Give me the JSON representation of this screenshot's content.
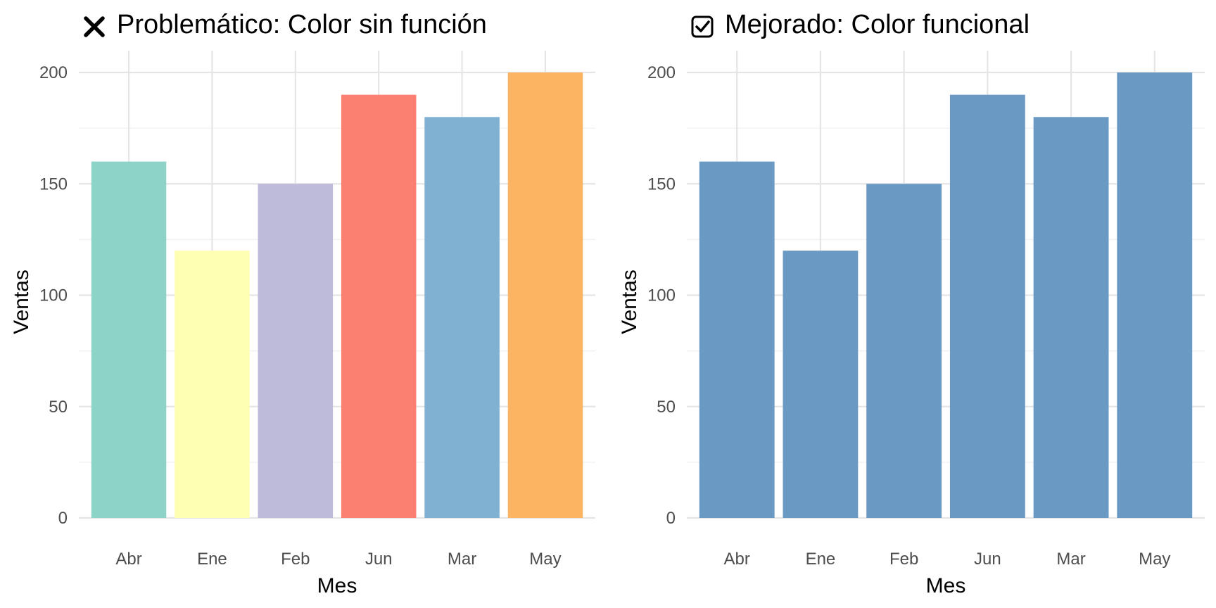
{
  "chart_data": [
    {
      "type": "bar",
      "title_icon": "x-mark-icon",
      "title": "Problemático: Color sin función",
      "categories": [
        "Abr",
        "Ene",
        "Feb",
        "Jun",
        "Mar",
        "May"
      ],
      "values": [
        160,
        120,
        150,
        190,
        180,
        200
      ],
      "colors": [
        "#8DD3C7",
        "#FFFFB3",
        "#BEBADA",
        "#FB8072",
        "#80B1D3",
        "#FDB462"
      ],
      "xlabel": "Mes",
      "ylabel": "Ventas",
      "ylim": [
        0,
        210
      ],
      "yticks": [
        0,
        50,
        100,
        150,
        200
      ],
      "grid": true,
      "legend": "none"
    },
    {
      "type": "bar",
      "title_icon": "checkbox-checked-icon",
      "title": "Mejorado: Color funcional",
      "categories": [
        "Abr",
        "Ene",
        "Feb",
        "Jun",
        "Mar",
        "May"
      ],
      "values": [
        160,
        120,
        150,
        190,
        180,
        200
      ],
      "colors": [
        "#6A9AC4",
        "#6A9AC4",
        "#6A9AC4",
        "#6A9AC4",
        "#6A9AC4",
        "#6A9AC4"
      ],
      "xlabel": "Mes",
      "ylabel": "Ventas",
      "ylim": [
        0,
        210
      ],
      "yticks": [
        0,
        50,
        100,
        150,
        200
      ],
      "grid": true,
      "legend": "none"
    }
  ]
}
